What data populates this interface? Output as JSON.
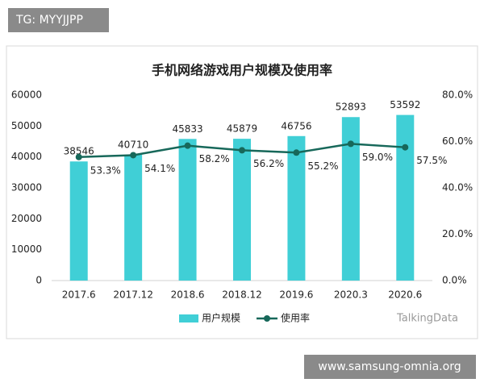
{
  "overlays": {
    "top_left": "TG: MYYJJPP",
    "bottom_right": "www.samsung-omnia.org",
    "source": "TalkingData"
  },
  "chart_data": {
    "type": "combo",
    "title": "手机网络游戏用户规模及使用率",
    "categories": [
      "2017.6",
      "2017.12",
      "2018.6",
      "2018.12",
      "2019.6",
      "2020.3",
      "2020.6"
    ],
    "series": [
      {
        "name": "用户规模",
        "type": "bar",
        "color": "#40cfd6",
        "values": [
          38546,
          40710,
          45833,
          45879,
          46756,
          52893,
          53592
        ]
      },
      {
        "name": "使用率",
        "type": "line",
        "axis": "y2",
        "color": "#17685a",
        "values": [
          53.3,
          54.1,
          58.2,
          56.2,
          55.2,
          59.0,
          57.5
        ],
        "value_labels": [
          "53.3%",
          "54.1%",
          "58.2%",
          "56.2%",
          "55.2%",
          "59.0%",
          "57.5%"
        ]
      }
    ],
    "ylim": [
      0,
      60000
    ],
    "yticks": [
      0,
      10000,
      20000,
      30000,
      40000,
      50000,
      60000
    ],
    "y2lim": [
      0,
      80
    ],
    "y2ticks": [
      {
        "value": 0,
        "label": "0.0%"
      },
      {
        "value": 20,
        "label": "20.0%"
      },
      {
        "value": 40,
        "label": "40.0%"
      },
      {
        "value": 60,
        "label": "60.0%"
      },
      {
        "value": 80,
        "label": "80.0%"
      }
    ],
    "grid": false
  }
}
